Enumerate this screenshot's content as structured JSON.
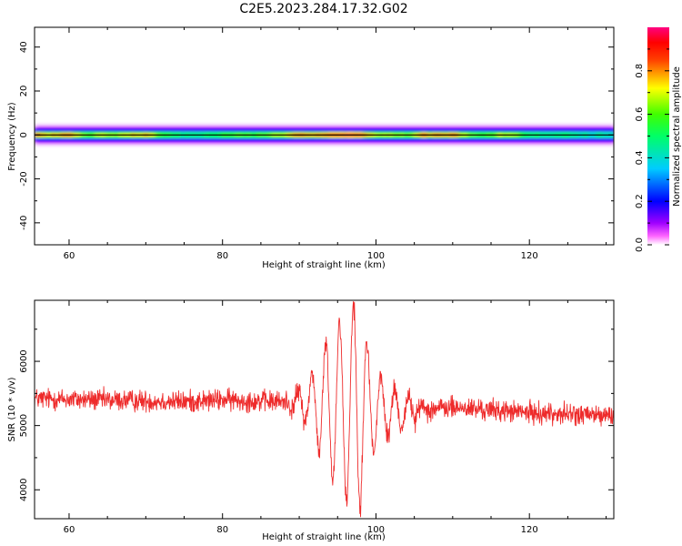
{
  "figure_title": "C2E5.2023.284.17.32.G02",
  "chart_data": [
    {
      "type": "heatmap",
      "xlabel": "Height of straight line (km)",
      "ylabel": "Frequency (Hz)",
      "xlim": [
        55.5,
        131
      ],
      "ylim": [
        -50,
        49
      ],
      "x_ticks": [
        60,
        80,
        100,
        120
      ],
      "y_ticks": [
        -40,
        -20,
        0,
        20,
        40
      ],
      "colorbar": {
        "label": "Normalized spectral amplitude",
        "range": [
          0,
          1
        ],
        "ticks": [
          0.0,
          0.2,
          0.4,
          0.6,
          0.8
        ],
        "colormap": [
          "#ffffff",
          "#ff00ff",
          "#8000ff",
          "#0000ff",
          "#00ffff",
          "#00ff00",
          "#ffff00",
          "#ff8000",
          "#ff0000",
          "#ff0080"
        ]
      },
      "band_center_hz": 0,
      "band_core_halfwidth_hz": 1.5,
      "band_extent_halfwidth_hz": 4,
      "amplitude_profile": {
        "x": [
          56,
          58,
          60,
          62,
          64,
          66,
          68,
          70,
          72,
          74,
          76,
          78,
          80,
          82,
          84,
          86,
          88,
          90,
          92,
          94,
          96,
          98,
          100,
          102,
          104,
          106,
          108,
          110,
          112,
          114,
          116,
          118,
          120,
          122,
          124,
          126,
          128,
          130
        ],
        "v": [
          0.8,
          0.75,
          0.85,
          0.6,
          0.7,
          0.65,
          0.75,
          0.8,
          0.55,
          0.5,
          0.45,
          0.5,
          0.55,
          0.6,
          0.55,
          0.6,
          0.75,
          0.85,
          0.8,
          0.9,
          0.95,
          0.9,
          0.65,
          0.7,
          0.6,
          0.85,
          0.8,
          0.85,
          0.6,
          0.55,
          0.7,
          0.65,
          0.5,
          0.45,
          0.5,
          0.45,
          0.4,
          0.4
        ]
      }
    },
    {
      "type": "line",
      "xlabel": "Height of straight line (km)",
      "ylabel": "SNR (10 * v/v)",
      "xlim": [
        55.5,
        131
      ],
      "ylim": [
        3550,
        6950
      ],
      "x_ticks": [
        60,
        80,
        100,
        120
      ],
      "y_ticks": [
        4000,
        5000,
        6000
      ],
      "color": "#ee2b2b",
      "x_sampling": {
        "start": 55.5,
        "stop": 131,
        "points": 1600
      },
      "baseline": {
        "x": [
          55.5,
          75,
          80,
          88,
          91,
          102,
          110,
          120,
          131
        ],
        "y": [
          5420,
          5370,
          5400,
          5370,
          5350,
          5230,
          5280,
          5200,
          5150
        ]
      },
      "noise_amplitude": 150,
      "oscillation_envelope": {
        "x": [
          88,
          91,
          93,
          95,
          96.5,
          97.5,
          98.5,
          99.5,
          101,
          103,
          105,
          107
        ],
        "amp": [
          0,
          300,
          850,
          1300,
          1500,
          1650,
          1200,
          700,
          450,
          300,
          150,
          0
        ]
      },
      "oscillation_period_km": 1.8,
      "extremes": {
        "max": 6920,
        "max_x": 97.2,
        "min": 3580,
        "min_x": 98.0
      }
    }
  ]
}
